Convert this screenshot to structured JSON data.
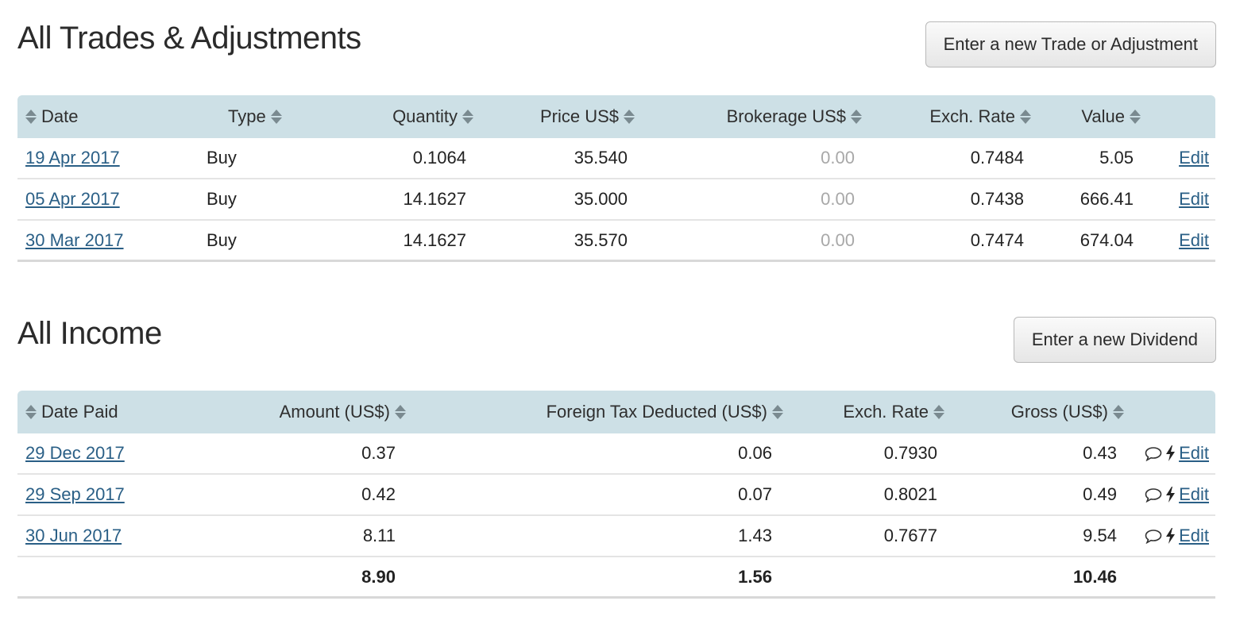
{
  "trades": {
    "title": "All Trades & Adjustments",
    "new_button": "Enter a new Trade or Adjustment",
    "headers": {
      "date": "Date",
      "type": "Type",
      "quantity": "Quantity",
      "price": "Price US$",
      "brokerage": "Brokerage US$",
      "exch_rate": "Exch. Rate",
      "value": "Value"
    },
    "rows": [
      {
        "date": "19 Apr 2017",
        "type": "Buy",
        "quantity": "0.1064",
        "price": "35.540",
        "brokerage": "0.00",
        "exch_rate": "0.7484",
        "value": "5.05",
        "edit": "Edit"
      },
      {
        "date": "05 Apr 2017",
        "type": "Buy",
        "quantity": "14.1627",
        "price": "35.000",
        "brokerage": "0.00",
        "exch_rate": "0.7438",
        "value": "666.41",
        "edit": "Edit"
      },
      {
        "date": "30 Mar 2017",
        "type": "Buy",
        "quantity": "14.1627",
        "price": "35.570",
        "brokerage": "0.00",
        "exch_rate": "0.7474",
        "value": "674.04",
        "edit": "Edit"
      }
    ]
  },
  "income": {
    "title": "All Income",
    "new_button": "Enter a new Dividend",
    "headers": {
      "date_paid": "Date Paid",
      "amount": "Amount (US$)",
      "foreign_tax": "Foreign Tax Deducted (US$)",
      "exch_rate": "Exch. Rate",
      "gross": "Gross (US$)"
    },
    "rows": [
      {
        "date": "29 Dec 2017",
        "amount": "0.37",
        "foreign_tax": "0.06",
        "exch_rate": "0.7930",
        "gross": "0.43",
        "edit": "Edit"
      },
      {
        "date": "29 Sep 2017",
        "amount": "0.42",
        "foreign_tax": "0.07",
        "exch_rate": "0.8021",
        "gross": "0.49",
        "edit": "Edit"
      },
      {
        "date": "30 Jun 2017",
        "amount": "8.11",
        "foreign_tax": "1.43",
        "exch_rate": "0.7677",
        "gross": "9.54",
        "edit": "Edit"
      }
    ],
    "totals": {
      "amount": "8.90",
      "foreign_tax": "1.56",
      "gross": "10.46"
    }
  },
  "icons": {
    "sort": "sort-icon",
    "comment": "comment-icon",
    "flash": "lightning-icon"
  },
  "colors": {
    "header_bg": "#cde0e6",
    "link": "#2a5f86",
    "muted": "#a8a8a8"
  }
}
